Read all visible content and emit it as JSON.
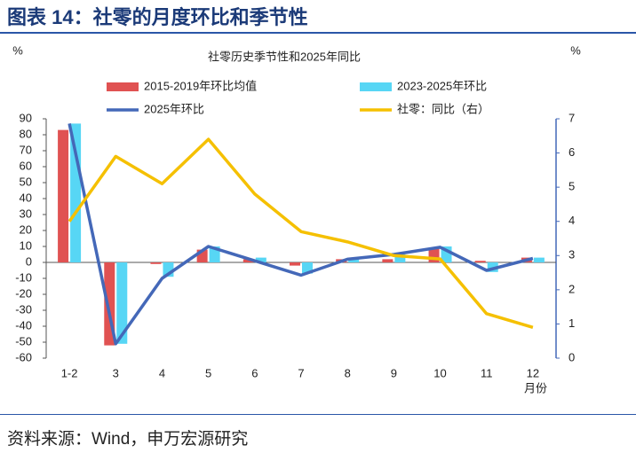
{
  "header": {
    "title": "图表 14：社零的月度环比和季节性"
  },
  "chart_data": {
    "type": "bar",
    "title": "社零历史季节性和2025年同比",
    "y_unit": "%",
    "y2_unit": "%",
    "x_label": "月份",
    "categories": [
      "1-2",
      "3",
      "4",
      "5",
      "6",
      "7",
      "8",
      "9",
      "10",
      "11",
      "12"
    ],
    "series": [
      {
        "name": "2015-2019年环比均值",
        "type": "bar",
        "color": "#e05252",
        "values": [
          83,
          -52,
          -1,
          8,
          2,
          -2,
          2,
          2,
          9,
          1,
          3
        ]
      },
      {
        "name": "2023-2025年环比",
        "type": "bar",
        "color": "#57d6f5",
        "values": [
          87,
          -51,
          -9,
          10,
          3,
          -7,
          2,
          5,
          10,
          -6,
          3
        ]
      },
      {
        "name": "2025年环比",
        "type": "line",
        "color": "#4468b8",
        "values": [
          87,
          -51,
          -10,
          10,
          1,
          -8,
          2,
          5,
          9.5,
          -5,
          2.5
        ]
      },
      {
        "name": "社零：同比（右）",
        "type": "line",
        "axis": "y2",
        "color": "#f5c000",
        "values": [
          4.0,
          5.9,
          5.1,
          6.4,
          4.8,
          3.7,
          3.4,
          3.0,
          2.9,
          1.3,
          0.9
        ]
      }
    ],
    "ylim": [
      -60,
      90
    ],
    "yticks": [
      -60,
      -50,
      -40,
      -30,
      -20,
      -10,
      0,
      10,
      20,
      30,
      40,
      50,
      60,
      70,
      80,
      90
    ],
    "y2lim": [
      0,
      7
    ],
    "y2ticks": [
      0,
      1,
      2,
      3,
      4,
      5,
      6,
      7
    ]
  },
  "source": "资料来源：Wind，申万宏源研究"
}
